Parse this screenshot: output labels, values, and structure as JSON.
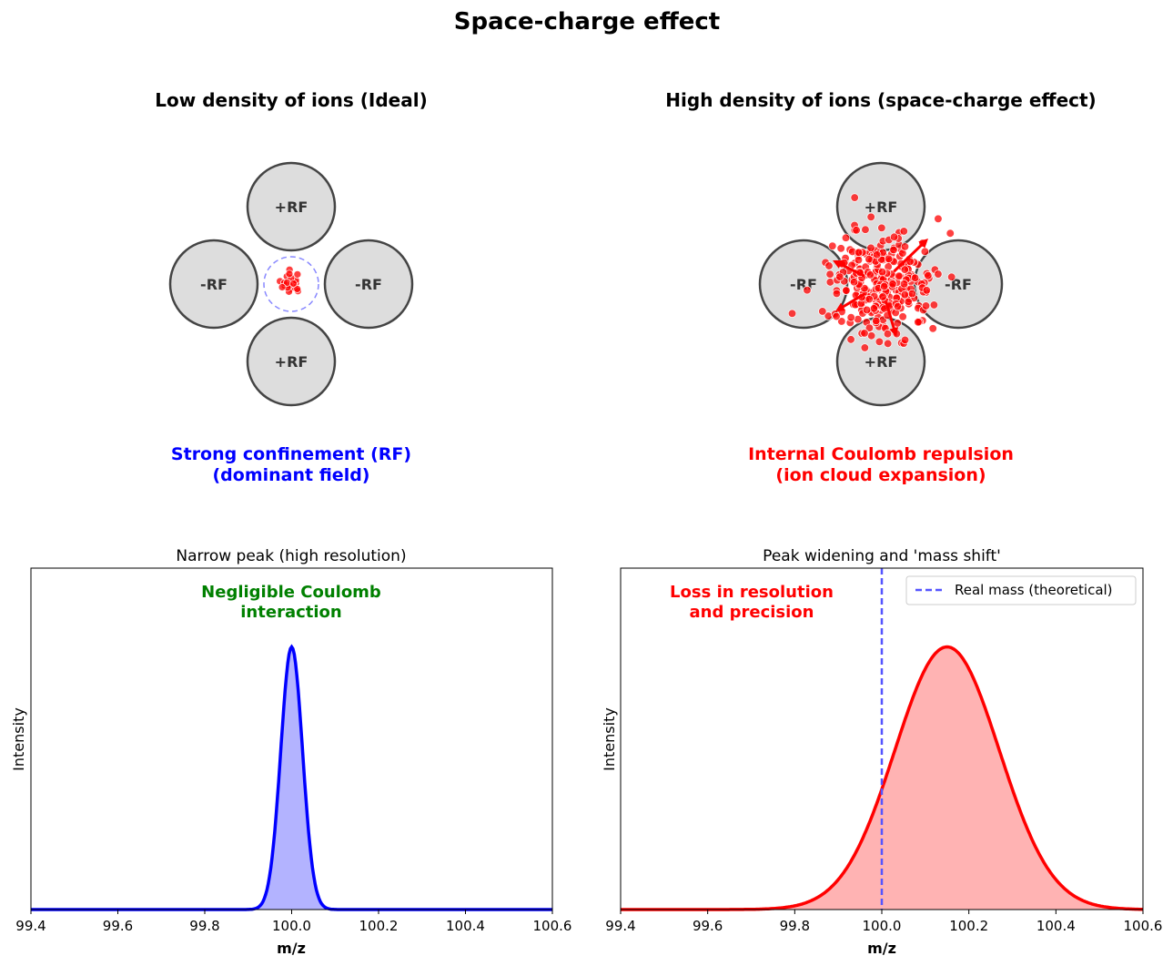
{
  "title": "Space-charge effect",
  "panels_top": [
    {
      "title": "Low density of ions (Ideal)",
      "rods": [
        "+RF",
        "-RF",
        "-RF",
        "+RF"
      ],
      "caption_lines": [
        "Strong confinement (RF)",
        "(dominant field)"
      ],
      "caption_color": "#0000ff"
    },
    {
      "title": "High density of ions (space-charge effect)",
      "rods": [
        "+RF",
        "-RF",
        "-RF",
        "+RF"
      ],
      "caption_lines": [
        "Internal Coulomb repulsion",
        "(ion cloud expansion)"
      ],
      "caption_color": "#ff0000"
    }
  ],
  "colors": {
    "rod_fill": "#dddddd",
    "rod_edge": "#444444",
    "ion": "#ff0000",
    "confinement": "#8888ff"
  },
  "chart_data": [
    {
      "type": "area",
      "title": "Narrow peak (high resolution)",
      "xlabel": "m/z",
      "ylabel": "Intensity",
      "xlim": [
        99.4,
        100.6
      ],
      "ylim": [
        0,
        1.3
      ],
      "xticks": [
        "99.4",
        "99.6",
        "99.8",
        "100.0",
        "100.2",
        "100.4",
        "100.6"
      ],
      "series": [
        {
          "curve": "gaussian",
          "center": 100.0,
          "sigma": 0.025,
          "peak": 1.0,
          "color": "#0000ff",
          "fill": "#b3b3ff"
        }
      ],
      "annotation_lines": [
        "Negligible Coulomb",
        "interaction"
      ],
      "annotation_color": "#008000"
    },
    {
      "type": "area",
      "title": "Peak widening and 'mass shift'",
      "xlabel": "m/z",
      "ylabel": "Intensity",
      "xlim": [
        99.4,
        100.6
      ],
      "ylim": [
        0,
        1.3
      ],
      "xticks": [
        "99.4",
        "99.6",
        "99.8",
        "100.0",
        "100.2",
        "100.4",
        "100.6"
      ],
      "series": [
        {
          "curve": "gaussian",
          "center": 100.15,
          "sigma": 0.12,
          "peak": 1.0,
          "color": "#ff0000",
          "fill": "#ffb3b3"
        }
      ],
      "vline": {
        "x": 100.0,
        "label": "Real mass (theoretical)",
        "color": "#5555ff"
      },
      "legend": "top-right",
      "annotation_lines": [
        "Loss in resolution",
        "and precision"
      ],
      "annotation_color": "#ff0000"
    }
  ]
}
